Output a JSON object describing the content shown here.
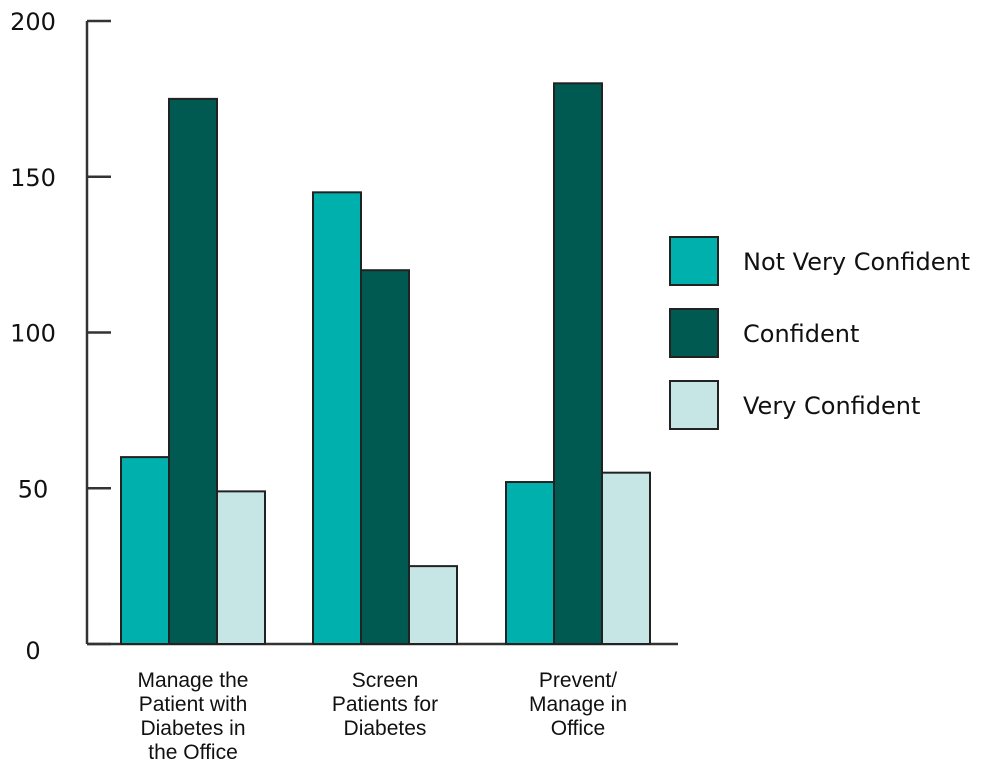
{
  "chart_data": {
    "type": "bar",
    "title": "",
    "xlabel": "",
    "ylabel": "",
    "ylim": [
      0,
      200
    ],
    "yticks": [
      0,
      50,
      100,
      150,
      200
    ],
    "grid": false,
    "legend_position": "right",
    "categories": [
      [
        "Manage the",
        "Patient with",
        "Diabetes in",
        "the Office"
      ],
      [
        "Screen",
        "Patients for",
        "Diabetes"
      ],
      [
        "Prevent/",
        "Manage in",
        "Office"
      ]
    ],
    "series": [
      {
        "name": "Not Very Confident",
        "color": "#00b0ad",
        "values": [
          60,
          145,
          52
        ]
      },
      {
        "name": "Confident",
        "color": "#005a52",
        "values": [
          175,
          120,
          180
        ]
      },
      {
        "name": "Very Confident",
        "color": "#c6e6e6",
        "values": [
          49,
          25,
          55
        ]
      }
    ]
  }
}
